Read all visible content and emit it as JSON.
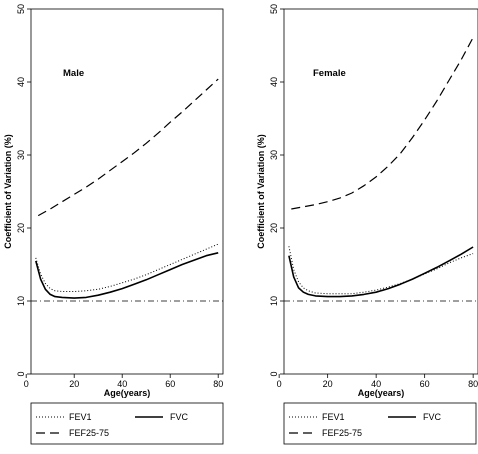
{
  "chart_data": [
    {
      "type": "line",
      "panel_label": "Male",
      "xlabel": "Age(years)",
      "ylabel": "Coefficient of Variation (%)",
      "xlim": [
        2,
        82
      ],
      "ylim": [
        0,
        50
      ],
      "x_ticks": [
        0,
        20,
        40,
        60,
        80
      ],
      "y_ticks": [
        0,
        10,
        20,
        30,
        40,
        50
      ],
      "reference_line_y": 10,
      "grid": false,
      "legend_position": "bottom",
      "series": [
        {
          "name": "FEV1",
          "style": "dotted",
          "x": [
            4,
            6,
            8,
            10,
            12,
            15,
            20,
            25,
            30,
            35,
            40,
            45,
            50,
            55,
            60,
            65,
            70,
            75,
            80
          ],
          "y": [
            15.9,
            13.7,
            12.4,
            11.7,
            11.4,
            11.3,
            11.3,
            11.4,
            11.6,
            12.0,
            12.5,
            13.0,
            13.6,
            14.3,
            15.0,
            15.7,
            16.4,
            17.1,
            17.8
          ]
        },
        {
          "name": "FVC",
          "style": "solid",
          "x": [
            4,
            6,
            8,
            10,
            12,
            15,
            20,
            25,
            30,
            35,
            40,
            45,
            50,
            55,
            60,
            65,
            70,
            75,
            80
          ],
          "y": [
            15.5,
            13.0,
            11.6,
            10.9,
            10.6,
            10.5,
            10.4,
            10.5,
            10.8,
            11.2,
            11.7,
            12.3,
            12.9,
            13.6,
            14.3,
            15.0,
            15.6,
            16.2,
            16.6
          ]
        },
        {
          "name": "FEF25-75",
          "style": "dashed",
          "x": [
            5,
            10,
            15,
            20,
            25,
            30,
            35,
            40,
            45,
            50,
            55,
            60,
            65,
            70,
            75,
            80
          ],
          "y": [
            21.7,
            22.6,
            23.6,
            24.6,
            25.6,
            26.7,
            27.9,
            29.1,
            30.3,
            31.6,
            33.0,
            34.5,
            35.9,
            37.4,
            38.9,
            40.4
          ]
        }
      ]
    },
    {
      "type": "line",
      "panel_label": "Female",
      "xlabel": "Age(years)",
      "ylabel": "Coefficient of Variation (%)",
      "xlim": [
        2,
        82
      ],
      "ylim": [
        0,
        50
      ],
      "x_ticks": [
        0,
        20,
        40,
        60,
        80
      ],
      "y_ticks": [
        0,
        10,
        20,
        30,
        40,
        50
      ],
      "reference_line_y": 10,
      "grid": false,
      "legend_position": "bottom",
      "series": [
        {
          "name": "FEV1",
          "style": "dotted",
          "x": [
            4,
            6,
            8,
            10,
            12,
            15,
            20,
            25,
            30,
            35,
            40,
            45,
            50,
            55,
            60,
            65,
            70,
            75,
            80
          ],
          "y": [
            17.5,
            14.3,
            12.6,
            11.8,
            11.4,
            11.1,
            11.0,
            11.0,
            11.0,
            11.2,
            11.5,
            11.9,
            12.4,
            13.0,
            13.7,
            14.4,
            15.2,
            15.9,
            16.5
          ]
        },
        {
          "name": "FVC",
          "style": "solid",
          "x": [
            4,
            6,
            8,
            10,
            12,
            15,
            20,
            25,
            30,
            35,
            40,
            45,
            50,
            55,
            60,
            65,
            70,
            75,
            80
          ],
          "y": [
            16.2,
            13.3,
            11.8,
            11.2,
            10.9,
            10.7,
            10.6,
            10.6,
            10.7,
            10.9,
            11.2,
            11.7,
            12.3,
            13.0,
            13.8,
            14.6,
            15.5,
            16.4,
            17.4
          ]
        },
        {
          "name": "FEF25-75",
          "style": "dashed",
          "x": [
            5,
            10,
            15,
            20,
            25,
            30,
            35,
            40,
            45,
            50,
            55,
            60,
            65,
            70,
            75,
            80
          ],
          "y": [
            22.6,
            22.9,
            23.2,
            23.6,
            24.1,
            24.8,
            25.8,
            27.0,
            28.5,
            30.2,
            32.4,
            34.8,
            37.4,
            40.2,
            43.0,
            46.1
          ]
        }
      ]
    }
  ]
}
